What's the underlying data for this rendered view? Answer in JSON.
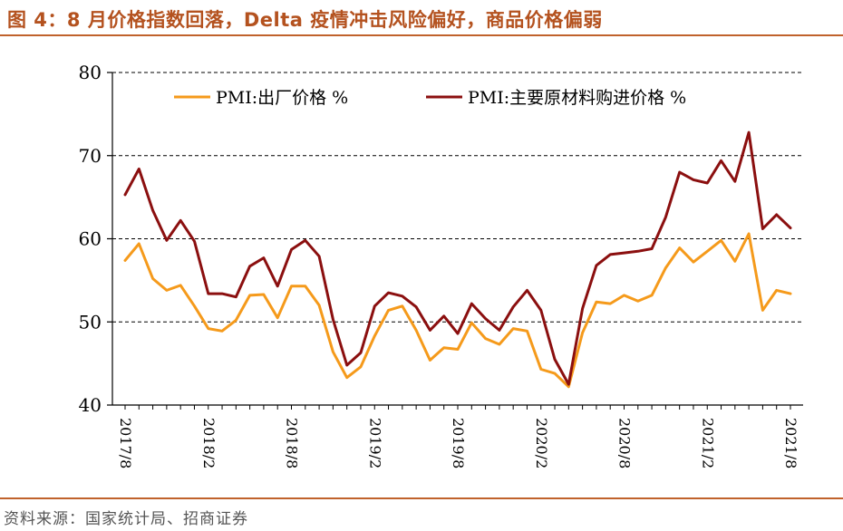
{
  "header": {
    "title": "图 4：8 月价格指数回落，Delta 疫情冲击风险偏好，商品价格偏弱"
  },
  "footer": {
    "source": "资料来源：国家统计局、招商证券"
  },
  "colors": {
    "accent": "#c0622c",
    "series_orange": "#f59a1b",
    "series_red": "#8b0f0f"
  },
  "chart_data": {
    "type": "line",
    "title": "",
    "xlabel": "",
    "ylabel": "",
    "ylim": [
      40,
      80
    ],
    "yticks": [
      40,
      50,
      60,
      70,
      80
    ],
    "grid": "horizontal dashed",
    "legend_position": "top",
    "x": [
      "2017/8",
      "2017/9",
      "2017/10",
      "2017/11",
      "2017/12",
      "2018/1",
      "2018/2",
      "2018/3",
      "2018/4",
      "2018/5",
      "2018/6",
      "2018/7",
      "2018/8",
      "2018/9",
      "2018/10",
      "2018/11",
      "2018/12",
      "2019/1",
      "2019/2",
      "2019/3",
      "2019/4",
      "2019/5",
      "2019/6",
      "2019/7",
      "2019/8",
      "2019/9",
      "2019/10",
      "2019/11",
      "2019/12",
      "2020/1",
      "2020/2",
      "2020/3",
      "2020/4",
      "2020/5",
      "2020/6",
      "2020/7",
      "2020/8",
      "2020/9",
      "2020/10",
      "2020/11",
      "2020/12",
      "2021/1",
      "2021/2",
      "2021/3",
      "2021/4",
      "2021/5",
      "2021/6",
      "2021/7",
      "2021/8"
    ],
    "xtick_labels": [
      "2017/8",
      "2018/2",
      "2018/8",
      "2019/2",
      "2019/8",
      "2020/2",
      "2020/8",
      "2021/2",
      "2021/8"
    ],
    "series": [
      {
        "name": "PMI:出厂价格 %",
        "color": "#f59a1b",
        "values": [
          57.4,
          59.4,
          55.2,
          53.8,
          54.4,
          51.9,
          49.2,
          48.9,
          50.2,
          53.2,
          53.3,
          50.5,
          54.3,
          54.3,
          52.0,
          46.4,
          43.3,
          44.6,
          48.3,
          51.4,
          51.9,
          49.0,
          45.4,
          46.9,
          46.7,
          49.9,
          48.0,
          47.3,
          49.2,
          48.9,
          44.3,
          43.8,
          42.2,
          48.7,
          52.4,
          52.2,
          53.2,
          52.5,
          53.2,
          56.5,
          58.9,
          57.2,
          58.5,
          59.8,
          57.3,
          60.6,
          51.4,
          53.8,
          53.4
        ]
      },
      {
        "name": "PMI:主要原材料购进价格 %",
        "color": "#8b0f0f",
        "values": [
          65.3,
          68.4,
          63.4,
          59.8,
          62.2,
          59.7,
          53.4,
          53.4,
          53.0,
          56.7,
          57.7,
          54.3,
          58.7,
          59.8,
          57.9,
          50.3,
          44.8,
          46.3,
          51.9,
          53.5,
          53.1,
          51.8,
          49.0,
          50.7,
          48.6,
          52.2,
          50.4,
          49.0,
          51.8,
          53.8,
          51.4,
          45.5,
          42.5,
          51.6,
          56.8,
          58.1,
          58.3,
          58.5,
          58.8,
          62.6,
          68.0,
          67.1,
          66.7,
          69.4,
          66.9,
          72.8,
          61.2,
          62.9,
          61.3
        ]
      }
    ]
  }
}
